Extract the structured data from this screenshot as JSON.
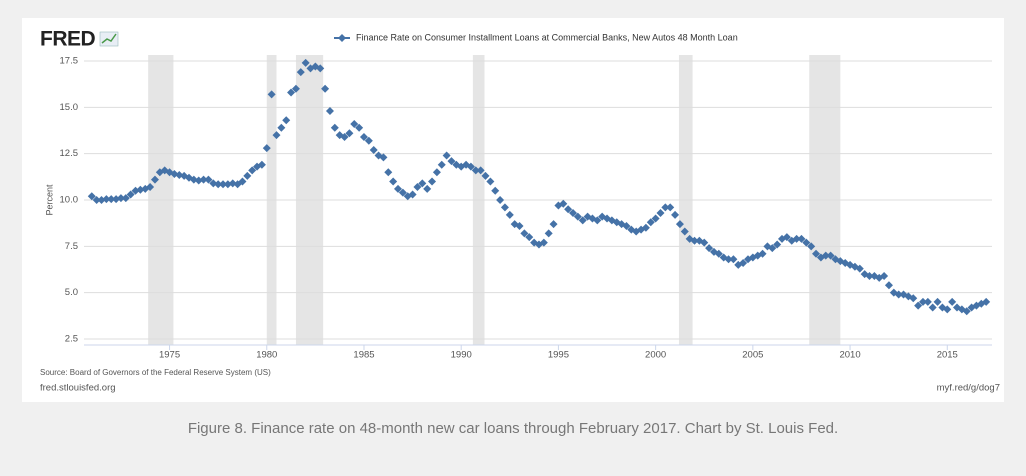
{
  "chart_data": {
    "type": "scatter",
    "logo": "FRED",
    "y_label": "Percent",
    "source": "Source: Board of Governors of the Federal Reserve System (US)",
    "site": "fred.stlouisfed.org",
    "short_link": "myf.red/g/dog7",
    "caption": "Figure 8. Finance rate on 48-month new car loans through February 2017. Chart by St. Louis Fed.",
    "xlim": [
      1970.6,
      2017.3
    ],
    "xticks": [
      1975,
      1980,
      1985,
      1990,
      1995,
      2000,
      2005,
      2010,
      2015
    ],
    "ylim": [
      2.5,
      17.5
    ],
    "yticks": [
      2.5,
      {
        "value": 5,
        "label": "5.0"
      },
      7.5,
      {
        "value": 10,
        "label": "10.0"
      },
      12.5,
      {
        "value": 15,
        "label": "15.0"
      },
      17.5
    ],
    "grid": true,
    "recessions": [
      [
        1973.9,
        1975.2
      ],
      [
        1980.0,
        1980.5
      ],
      [
        1981.5,
        1982.9
      ],
      [
        1990.6,
        1991.2
      ],
      [
        2001.2,
        2001.9
      ],
      [
        2007.9,
        2009.5
      ]
    ],
    "x": [
      1971,
      1971.25,
      1971.5,
      1971.75,
      1972,
      1972.25,
      1972.5,
      1972.75,
      1973,
      1973.25,
      1973.5,
      1973.75,
      1974,
      1974.25,
      1974.5,
      1974.75,
      1975,
      1975.25,
      1975.5,
      1975.75,
      1976,
      1976.25,
      1976.5,
      1976.75,
      1977,
      1977.25,
      1977.5,
      1977.75,
      1978,
      1978.25,
      1978.5,
      1978.75,
      1979,
      1979.25,
      1979.5,
      1979.75,
      1980,
      1980.25,
      1980.5,
      1980.75,
      1981,
      1981.25,
      1981.5,
      1981.75,
      1982,
      1982.25,
      1982.5,
      1982.75,
      1983,
      1983.25,
      1983.5,
      1983.75,
      1984,
      1984.25,
      1984.5,
      1984.75,
      1985,
      1985.25,
      1985.5,
      1985.75,
      1986,
      1986.25,
      1986.5,
      1986.75,
      1987,
      1987.25,
      1987.5,
      1987.75,
      1988,
      1988.25,
      1988.5,
      1988.75,
      1989,
      1989.25,
      1989.5,
      1989.75,
      1990,
      1990.25,
      1990.5,
      1990.75,
      1991,
      1991.25,
      1991.5,
      1991.75,
      1992,
      1992.25,
      1992.5,
      1992.75,
      1993,
      1993.25,
      1993.5,
      1993.75,
      1994,
      1994.25,
      1994.5,
      1994.75,
      1995,
      1995.25,
      1995.5,
      1995.75,
      1996,
      1996.25,
      1996.5,
      1996.75,
      1997,
      1997.25,
      1997.5,
      1997.75,
      1998,
      1998.25,
      1998.5,
      1998.75,
      1999,
      1999.25,
      1999.5,
      1999.75,
      2000,
      2000.25,
      2000.5,
      2000.75,
      2001,
      2001.25,
      2001.5,
      2001.75,
      2002,
      2002.25,
      2002.5,
      2002.75,
      2003,
      2003.25,
      2003.5,
      2003.75,
      2004,
      2004.25,
      2004.5,
      2004.75,
      2005,
      2005.25,
      2005.5,
      2005.75,
      2006,
      2006.25,
      2006.5,
      2006.75,
      2007,
      2007.25,
      2007.5,
      2007.75,
      2008,
      2008.25,
      2008.5,
      2008.75,
      2009,
      2009.25,
      2009.5,
      2009.75,
      2010,
      2010.25,
      2010.5,
      2010.75,
      2011,
      2011.25,
      2011.5,
      2011.75,
      2012,
      2012.25,
      2012.5,
      2012.75,
      2013,
      2013.25,
      2013.5,
      2013.75,
      2014,
      2014.25,
      2014.5,
      2014.75,
      2015,
      2015.25,
      2015.5,
      2015.75,
      2016,
      2016.25,
      2016.5,
      2016.75,
      2017
    ],
    "series": [
      {
        "name": "Finance Rate on Consumer Installment Loans at Commercial Banks, New Autos 48 Month Loan",
        "color": "#4572a7",
        "values": [
          10.2,
          10.0,
          10.0,
          10.05,
          10.05,
          10.05,
          10.1,
          10.1,
          10.3,
          10.5,
          10.55,
          10.6,
          10.7,
          11.1,
          11.5,
          11.6,
          11.5,
          11.4,
          11.35,
          11.3,
          11.2,
          11.1,
          11.05,
          11.1,
          11.1,
          10.9,
          10.85,
          10.85,
          10.85,
          10.9,
          10.85,
          11.0,
          11.3,
          11.6,
          11.8,
          11.9,
          12.8,
          15.7,
          13.5,
          13.9,
          14.3,
          15.8,
          16.0,
          16.9,
          17.4,
          17.1,
          17.2,
          17.1,
          16.0,
          14.8,
          13.9,
          13.5,
          13.4,
          13.6,
          14.1,
          13.9,
          13.4,
          13.2,
          12.7,
          12.4,
          12.3,
          11.5,
          11.0,
          10.6,
          10.4,
          10.2,
          10.3,
          10.7,
          10.9,
          10.6,
          11.0,
          11.5,
          11.9,
          12.4,
          12.1,
          11.9,
          11.8,
          11.9,
          11.8,
          11.6,
          11.6,
          11.3,
          11.0,
          10.5,
          10.0,
          9.6,
          9.2,
          8.7,
          8.6,
          8.2,
          8.0,
          7.7,
          7.6,
          7.7,
          8.2,
          8.7,
          9.7,
          9.8,
          9.5,
          9.3,
          9.1,
          8.9,
          9.1,
          9.0,
          8.9,
          9.1,
          9.0,
          8.9,
          8.8,
          8.7,
          8.6,
          8.4,
          8.3,
          8.4,
          8.5,
          8.8,
          9.0,
          9.3,
          9.6,
          9.6,
          9.2,
          8.7,
          8.3,
          7.9,
          7.8,
          7.8,
          7.7,
          7.4,
          7.2,
          7.1,
          6.9,
          6.8,
          6.8,
          6.5,
          6.6,
          6.8,
          6.9,
          7.0,
          7.1,
          7.5,
          7.4,
          7.6,
          7.9,
          8.0,
          7.8,
          7.9,
          7.9,
          7.7,
          7.5,
          7.1,
          6.9,
          7.0,
          7.0,
          6.8,
          6.7,
          6.6,
          6.5,
          6.4,
          6.3,
          6.0,
          5.9,
          5.9,
          5.8,
          5.9,
          5.4,
          5.0,
          4.9,
          4.9,
          4.8,
          4.7,
          4.3,
          4.5,
          4.5,
          4.2,
          4.5,
          4.2,
          4.1,
          4.5,
          4.2,
          4.1,
          4.0,
          4.2,
          4.3,
          4.4,
          4.5
        ]
      }
    ]
  }
}
